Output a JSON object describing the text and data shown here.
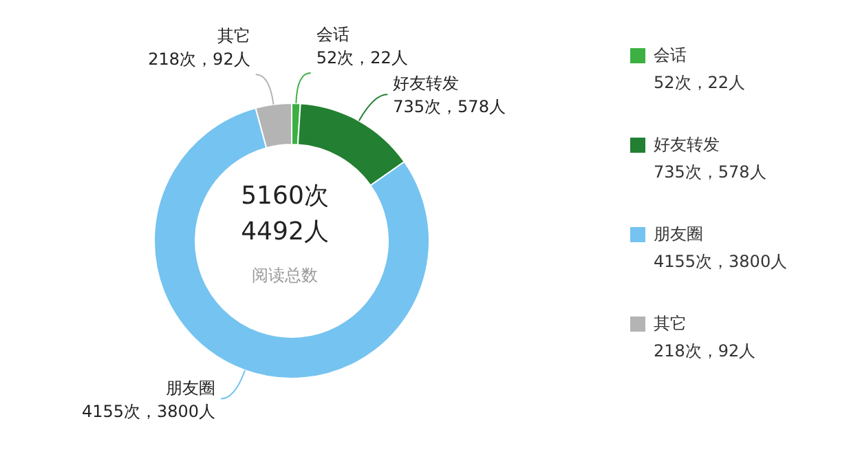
{
  "chart_data": {
    "type": "donut",
    "categories": [
      "会话",
      "好友转发",
      "朋友圈",
      "其它"
    ],
    "values": [
      52,
      735,
      4155,
      218
    ],
    "colors": [
      "#3cb043",
      "#237f31",
      "#75c3f0",
      "#b4b4b4"
    ],
    "value_labels": [
      "52次，22人",
      "735次，578人",
      "4155次，3800人",
      "218次，92人"
    ],
    "annotations": [
      "5160次",
      "4492人",
      "阅读总数"
    ],
    "legend": "right"
  }
}
